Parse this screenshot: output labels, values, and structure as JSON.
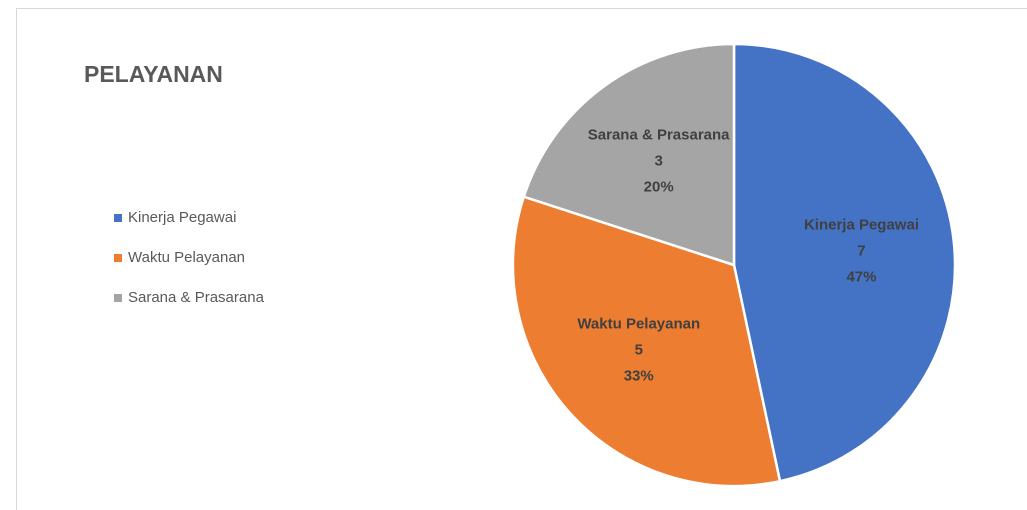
{
  "chart_data": {
    "type": "pie",
    "title": "PELAYANAN",
    "categories": [
      "Kinerja Pegawai",
      "Waktu Pelayanan",
      "Sarana & Prasarana"
    ],
    "values": [
      7,
      5,
      3
    ],
    "percent_labels": [
      "47%",
      "33%",
      "20%"
    ],
    "colors": [
      "#4472c4",
      "#ed7d31",
      "#a5a5a5"
    ],
    "legend": "left"
  }
}
